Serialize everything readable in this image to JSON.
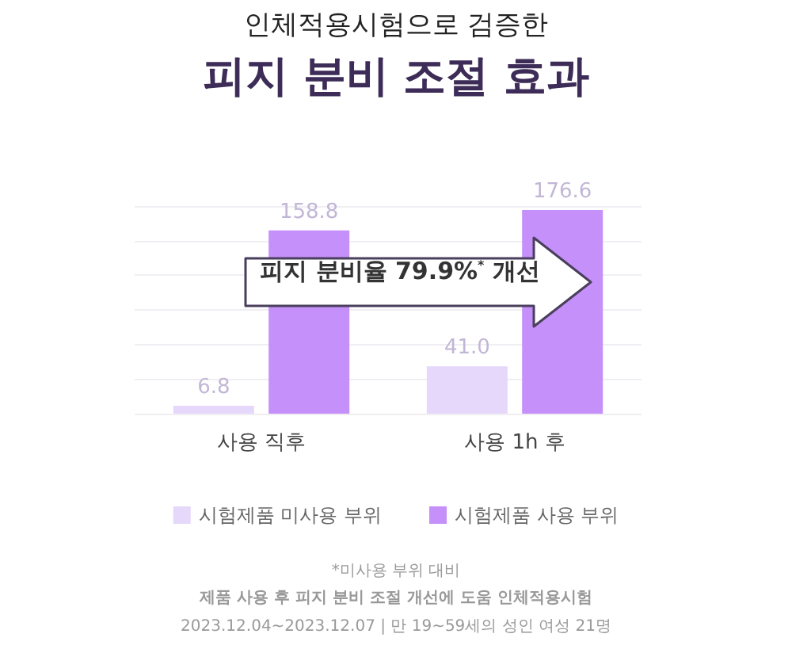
{
  "chart_data": {
    "type": "bar",
    "subtitle": "인체적용시험으로 검증한",
    "title": "피지 분비 조절 효과",
    "categories": [
      "사용 직후",
      "사용 1h 후"
    ],
    "series": [
      {
        "name": "시험제품 미사용 부위",
        "color": "#e6d8fb",
        "values": [
          6.8,
          41.0
        ],
        "value_labels": [
          "6.8",
          "41.0"
        ]
      },
      {
        "name": "시험제품 사용 부위",
        "color": "#c590f9",
        "values": [
          158.8,
          176.6
        ],
        "value_labels": [
          "158.8",
          "176.6"
        ]
      }
    ],
    "ylim": [
      0,
      180
    ],
    "yticks": [
      {
        "value": 0,
        "label": null
      },
      {
        "value": 30,
        "label": null
      },
      {
        "value": 60,
        "label": null
      },
      {
        "value": 90,
        "label": null
      },
      {
        "value": 120,
        "label": null
      },
      {
        "value": 150,
        "label": null
      },
      {
        "value": 180,
        "label": null
      }
    ],
    "tick_labels": "x",
    "grid": "y",
    "legend": "bottom",
    "annotations": [
      "피지 분비율 79.9%$^{*}$ 개선",
      "*미사용 부위 대비",
      "제품 사용 후 피지 분비 조절 개선에 도움 인체적용시험",
      "2023.12.04~2023.12.07 | 만 19~59세의 성인 여성 21명"
    ]
  }
}
